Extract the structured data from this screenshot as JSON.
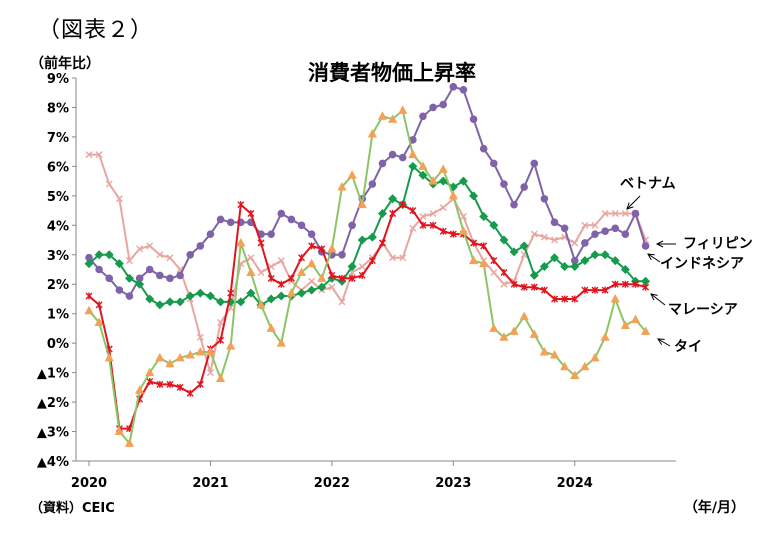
{
  "figure_label": "（図表２）",
  "chart_data": {
    "type": "line",
    "title": "消費者物価上昇率",
    "ylabel": "（前年比）",
    "xlabel": "（年/月）",
    "source": "（資料）CEIC",
    "ylim": [
      -4,
      9
    ],
    "yticks": [
      {
        "value": 9,
        "label": "9%"
      },
      {
        "value": 8,
        "label": "8%"
      },
      {
        "value": 7,
        "label": "7%"
      },
      {
        "value": 6,
        "label": "6%"
      },
      {
        "value": 5,
        "label": "5%"
      },
      {
        "value": 4,
        "label": "4%"
      },
      {
        "value": 3,
        "label": "3%"
      },
      {
        "value": 2,
        "label": "2%"
      },
      {
        "value": 1,
        "label": "1%"
      },
      {
        "value": 0,
        "label": "0%"
      },
      {
        "value": -1,
        "label": "▲1%"
      },
      {
        "value": -2,
        "label": "▲2%"
      },
      {
        "value": -3,
        "label": "▲3%"
      },
      {
        "value": -4,
        "label": "▲4%"
      }
    ],
    "xticks": [
      "2020",
      "2021",
      "2022",
      "2023",
      "2024"
    ],
    "x_start": "2020-01",
    "grid": false,
    "series": [
      {
        "name": "ベトナム",
        "color": "#e8a6a0",
        "marker": "cross",
        "values": [
          6.4,
          6.4,
          5.4,
          4.9,
          2.8,
          3.2,
          3.3,
          3.0,
          2.9,
          2.5,
          1.5,
          0.2,
          -1.0,
          0.7,
          1.2,
          2.7,
          2.9,
          2.4,
          2.6,
          2.8,
          2.1,
          1.8,
          2.1,
          1.8,
          1.9,
          1.4,
          2.4,
          2.6,
          2.9,
          3.4,
          2.9,
          2.9,
          3.9,
          4.3,
          4.4,
          4.6,
          4.9,
          4.3,
          3.4,
          2.8,
          2.4,
          2.0,
          2.1,
          3.0,
          3.7,
          3.6,
          3.5,
          3.6,
          3.4,
          4.0,
          4.0,
          4.4,
          4.4,
          4.4,
          4.4,
          3.5
        ]
      },
      {
        "name": "フィリピン",
        "color": "#7f62a8",
        "marker": "circle",
        "values": [
          2.9,
          2.5,
          2.2,
          1.8,
          1.6,
          2.2,
          2.5,
          2.3,
          2.2,
          2.3,
          3.0,
          3.3,
          3.7,
          4.2,
          4.1,
          4.1,
          4.1,
          3.7,
          3.7,
          4.4,
          4.2,
          4.0,
          3.7,
          3.1,
          3.0,
          3.0,
          4.0,
          4.9,
          5.4,
          6.1,
          6.4,
          6.3,
          6.9,
          7.7,
          8.0,
          8.1,
          8.7,
          8.6,
          7.6,
          6.6,
          6.1,
          5.4,
          4.7,
          5.3,
          6.1,
          4.9,
          4.1,
          3.9,
          2.8,
          3.4,
          3.7,
          3.8,
          3.9,
          3.7,
          4.4,
          3.3
        ]
      },
      {
        "name": "インドネシア",
        "color": "#169a4c",
        "marker": "diamond",
        "values": [
          2.7,
          3.0,
          3.0,
          2.7,
          2.2,
          2.0,
          1.5,
          1.3,
          1.4,
          1.4,
          1.6,
          1.7,
          1.6,
          1.4,
          1.4,
          1.4,
          1.7,
          1.3,
          1.5,
          1.6,
          1.6,
          1.7,
          1.8,
          1.9,
          2.2,
          2.1,
          2.6,
          3.5,
          3.6,
          4.4,
          4.9,
          4.7,
          6.0,
          5.7,
          5.4,
          5.5,
          5.3,
          5.5,
          5.0,
          4.3,
          4.0,
          3.5,
          3.1,
          3.3,
          2.3,
          2.6,
          2.9,
          2.6,
          2.6,
          2.8,
          3.0,
          3.0,
          2.8,
          2.5,
          2.1,
          2.1
        ]
      },
      {
        "name": "マレーシア",
        "color": "#e0141e",
        "marker": "star",
        "values": [
          1.6,
          1.3,
          -0.2,
          -2.9,
          -2.9,
          -1.9,
          -1.3,
          -1.4,
          -1.4,
          -1.5,
          -1.7,
          -1.4,
          -0.2,
          0.1,
          1.7,
          4.7,
          4.4,
          3.4,
          2.2,
          2.0,
          2.2,
          2.9,
          3.3,
          3.2,
          2.3,
          2.2,
          2.2,
          2.3,
          2.8,
          3.4,
          4.4,
          4.7,
          4.5,
          4.0,
          4.0,
          3.8,
          3.7,
          3.7,
          3.4,
          3.3,
          2.8,
          2.4,
          2.0,
          1.9,
          1.9,
          1.8,
          1.5,
          1.5,
          1.5,
          1.8,
          1.8,
          1.8,
          2.0,
          2.0,
          2.0,
          1.9
        ]
      },
      {
        "name": "タイ",
        "color": "#f4a055",
        "line_color": "#8cc466",
        "marker": "triangle",
        "values": [
          1.1,
          0.7,
          -0.5,
          -3.0,
          -3.4,
          -1.6,
          -1.0,
          -0.5,
          -0.7,
          -0.5,
          -0.4,
          -0.3,
          -0.3,
          -1.2,
          -0.1,
          3.4,
          2.4,
          1.3,
          0.5,
          0.0,
          1.7,
          2.4,
          2.7,
          2.2,
          3.2,
          5.3,
          5.7,
          4.7,
          7.1,
          7.7,
          7.6,
          7.9,
          6.4,
          6.0,
          5.5,
          5.9,
          5.0,
          3.8,
          2.8,
          2.7,
          0.5,
          0.2,
          0.4,
          0.9,
          0.3,
          -0.3,
          -0.4,
          -0.8,
          -1.1,
          -0.8,
          -0.5,
          0.2,
          1.5,
          0.6,
          0.8,
          0.4
        ]
      }
    ]
  }
}
